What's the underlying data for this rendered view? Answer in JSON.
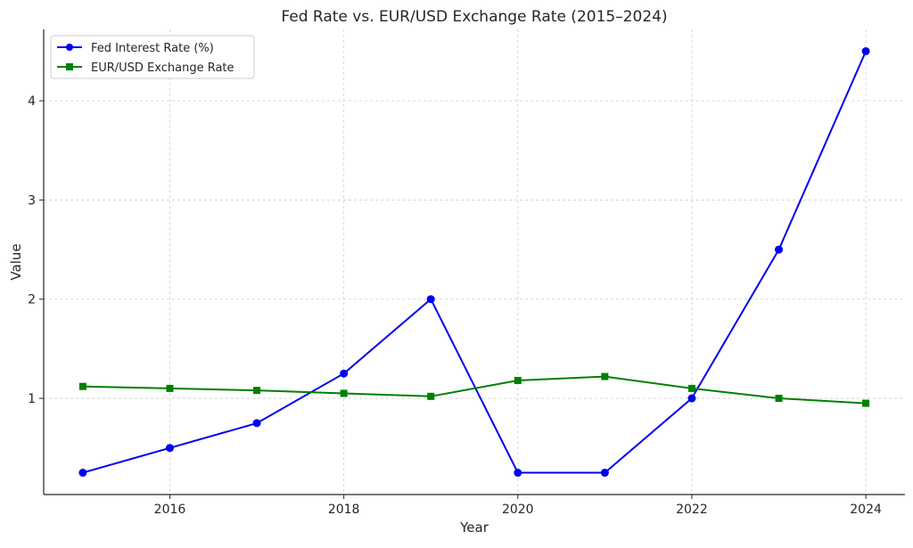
{
  "chart_data": {
    "type": "line",
    "title": "Fed Rate vs. EUR/USD Exchange Rate (2015–2024)",
    "xlabel": "Year",
    "ylabel": "Value",
    "x": [
      2015,
      2016,
      2017,
      2018,
      2019,
      2020,
      2021,
      2022,
      2023,
      2024
    ],
    "xlim": [
      2014.55,
      2024.45
    ],
    "ylim": [
      0.03,
      4.72
    ],
    "x_ticks": [
      2016,
      2018,
      2020,
      2022,
      2024
    ],
    "y_ticks": [
      1,
      2,
      3,
      4
    ],
    "grid": true,
    "legend_position": "top-left",
    "series": [
      {
        "name": "Fed Interest Rate (%)",
        "color": "#0000ee",
        "marker": "circle",
        "values": [
          0.25,
          0.5,
          0.75,
          1.25,
          2.0,
          0.25,
          0.25,
          1.0,
          2.5,
          4.5
        ]
      },
      {
        "name": "EUR/USD Exchange Rate",
        "color": "#008000",
        "marker": "square",
        "values": [
          1.12,
          1.1,
          1.08,
          1.05,
          1.02,
          1.18,
          1.22,
          1.1,
          1.0,
          0.95
        ]
      }
    ]
  }
}
